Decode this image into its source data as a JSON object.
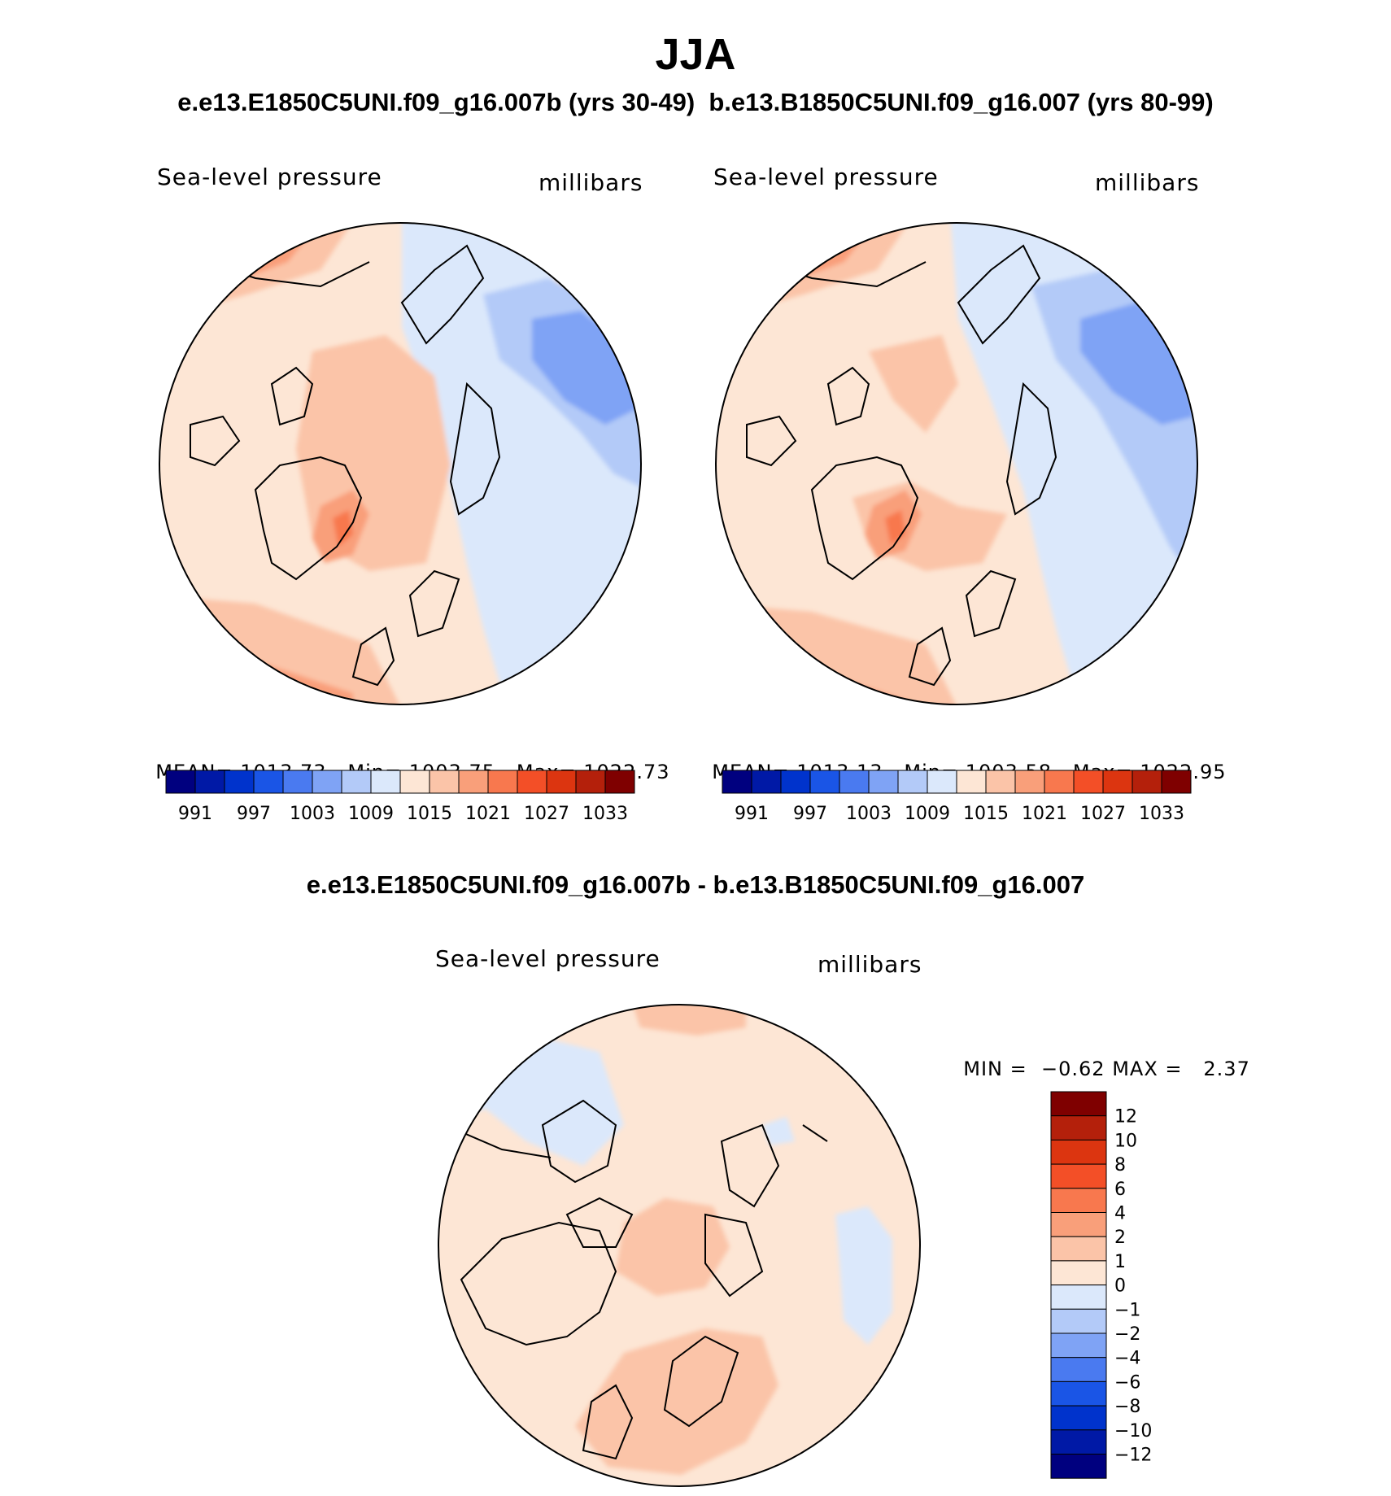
{
  "title": "JJA",
  "subtitle": "e.e13.E1850C5UNI.f09_g16.007b (yrs 30-49)  b.e13.B1850C5UNI.f09_g16.007 (yrs 80-99)",
  "diff_title": "e.e13.E1850C5UNI.f09_g16.007b - b.e13.B1850C5UNI.f09_g16.007",
  "colors": {
    "seq": [
      "#00007f",
      "#0019a6",
      "#0033cc",
      "#1a55e6",
      "#4a7af0",
      "#7fa3f5",
      "#b3caf8",
      "#dbe8fb",
      "#fde6d5",
      "#fbc4a8",
      "#f99f7a",
      "#f8784e",
      "#f34f27",
      "#dc3510",
      "#b4200b",
      "#7f0000"
    ],
    "land_outline": "#000000"
  },
  "chart_data": [
    {
      "type": "heatmap",
      "panel": "left",
      "title": "Sea-level pressure",
      "units": "millibars",
      "projection": "north polar stereographic",
      "stats": {
        "mean_label": "MEAN=",
        "mean": "1013.73",
        "min_label": "Min=",
        "min": "1003.75",
        "max_label": "Max=",
        "max": "1022.73"
      },
      "colorbar_ticks": [
        "991",
        "997",
        "1003",
        "1009",
        "1015",
        "1021",
        "1027",
        "1033"
      ],
      "levels": [
        991,
        994,
        997,
        1000,
        1003,
        1006,
        1009,
        1012,
        1015,
        1018,
        1021,
        1024,
        1027,
        1030,
        1033
      ]
    },
    {
      "type": "heatmap",
      "panel": "right",
      "title": "Sea-level pressure",
      "units": "millibars",
      "projection": "north polar stereographic",
      "stats": {
        "mean_label": "MEAN=",
        "mean": "1013.13",
        "min_label": "Min=",
        "min": "1003.58",
        "max_label": "Max=",
        "max": "1022.95"
      },
      "colorbar_ticks": [
        "991",
        "997",
        "1003",
        "1009",
        "1015",
        "1021",
        "1027",
        "1033"
      ],
      "levels": [
        991,
        994,
        997,
        1000,
        1003,
        1006,
        1009,
        1012,
        1015,
        1018,
        1021,
        1024,
        1027,
        1030,
        1033
      ]
    },
    {
      "type": "heatmap",
      "panel": "difference",
      "title": "Sea-level pressure",
      "units": "millibars",
      "projection": "north polar stereographic",
      "stats": {
        "min_label": "MIN =",
        "min": "−0.62",
        "max_label": "MAX =",
        "max": "2.37"
      },
      "colorbar_ticks": [
        "12",
        "10",
        "8",
        "6",
        "4",
        "2",
        "1",
        "0",
        "−1",
        "−2",
        "−4",
        "−6",
        "−8",
        "−10",
        "−12"
      ],
      "levels": [
        -12,
        -10,
        -8,
        -6,
        -4,
        -2,
        -1,
        0,
        1,
        2,
        4,
        6,
        8,
        10,
        12
      ]
    }
  ]
}
